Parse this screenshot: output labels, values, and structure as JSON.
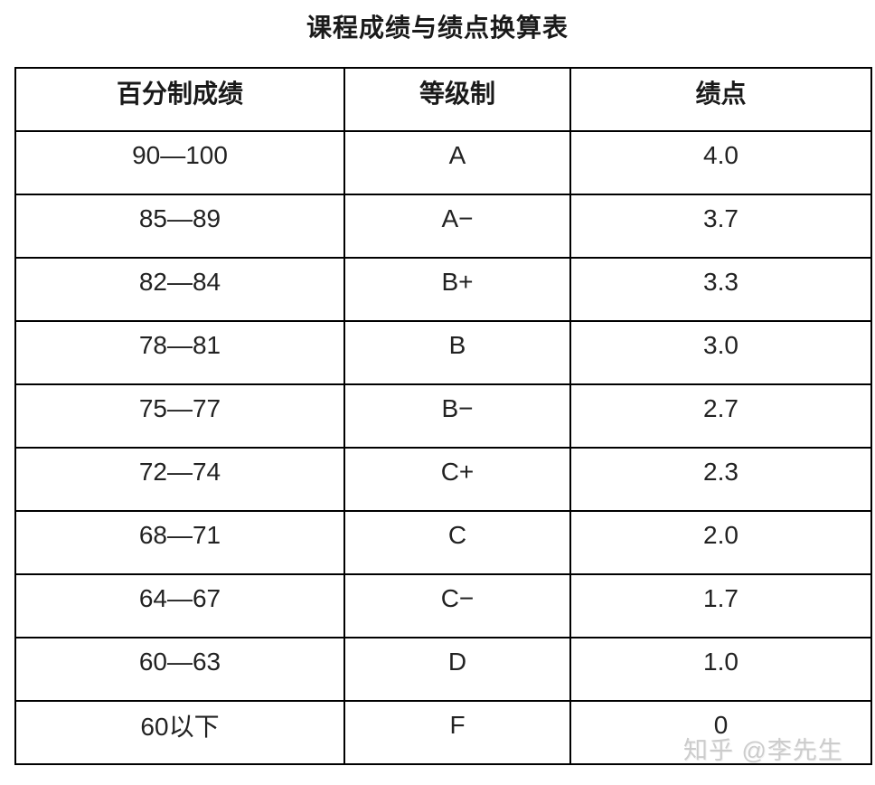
{
  "title": "课程成绩与绩点换算表",
  "table": {
    "headers": [
      "百分制成绩",
      "等级制",
      "绩点"
    ],
    "rows": [
      [
        "90—100",
        "A",
        "4.0"
      ],
      [
        "85—89",
        "A−",
        "3.7"
      ],
      [
        "82—84",
        "B+",
        "3.3"
      ],
      [
        "78—81",
        "B",
        "3.0"
      ],
      [
        "75—77",
        "B−",
        "2.7"
      ],
      [
        "72—74",
        "C+",
        "2.3"
      ],
      [
        "68—71",
        "C",
        "2.0"
      ],
      [
        "64—67",
        "C−",
        "1.7"
      ],
      [
        "60—63",
        "D",
        "1.0"
      ],
      [
        "60以下",
        "F",
        "0"
      ]
    ]
  },
  "watermark": {
    "text": "知乎 @李先生"
  },
  "colors": {
    "border": "#000000",
    "text": "#222222",
    "title": "#1a1a1a",
    "watermark": "#cccccc",
    "background": "#ffffff"
  }
}
